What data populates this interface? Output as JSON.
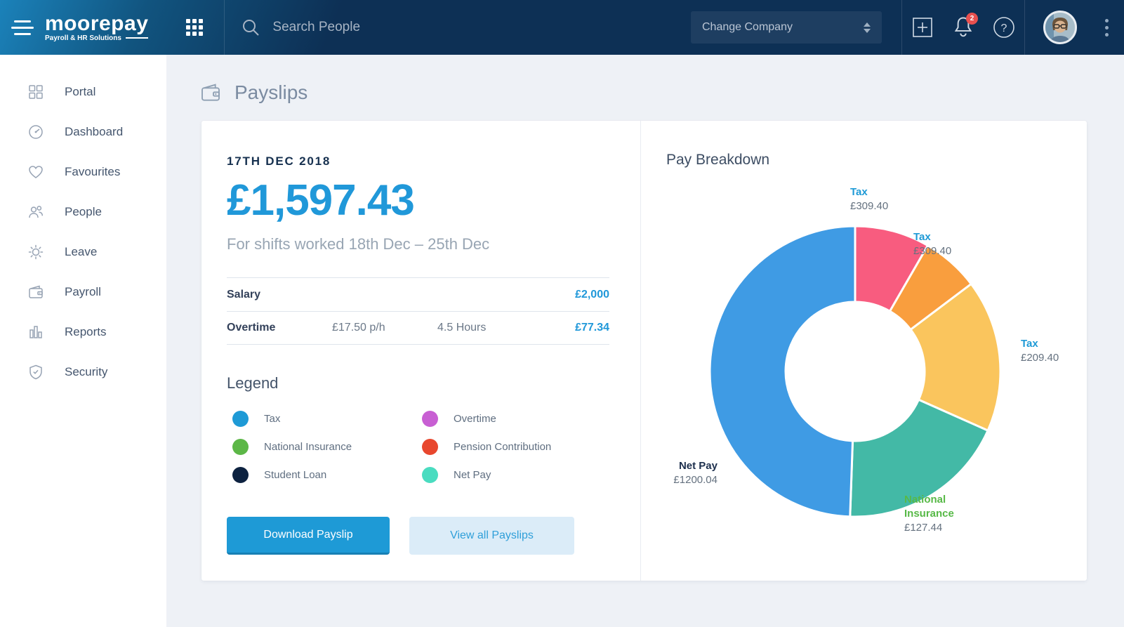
{
  "header": {
    "logo": {
      "name": "moorepay",
      "tagline": "Payroll & HR Solutions"
    },
    "search": {
      "placeholder": "Search People"
    },
    "company_dropdown": {
      "label": "Change Company"
    },
    "notifications": {
      "badge": "2"
    }
  },
  "sidebar": {
    "items": [
      {
        "label": "Portal",
        "icon": "portal-grid-icon"
      },
      {
        "label": "Dashboard",
        "icon": "gauge-icon"
      },
      {
        "label": "Favourites",
        "icon": "heart-icon"
      },
      {
        "label": "People",
        "icon": "people-icon"
      },
      {
        "label": "Leave",
        "icon": "sun-icon"
      },
      {
        "label": "Payroll",
        "icon": "wallet-icon"
      },
      {
        "label": "Reports",
        "icon": "bar-chart-icon"
      },
      {
        "label": "Security",
        "icon": "shield-icon"
      }
    ]
  },
  "page": {
    "title": "Payslips"
  },
  "payslip": {
    "date": "17TH DEC 2018",
    "amount": "£1,597.43",
    "subtitle": "For shifts worked 18th Dec – 25th Dec",
    "rows": [
      {
        "label": "Salary",
        "rate": "",
        "hours": "",
        "amount": "£2,000"
      },
      {
        "label": "Overtime",
        "rate": "£17.50 p/h",
        "hours": "4.5 Hours",
        "amount": "£77.34"
      }
    ],
    "legend": {
      "title": "Legend",
      "items": [
        {
          "label": "Tax",
          "color": "#1e9ad6"
        },
        {
          "label": "Overtime",
          "color": "#c85fd3"
        },
        {
          "label": "National Insurance",
          "color": "#5cb747"
        },
        {
          "label": "Pension Contribution",
          "color": "#e8472e"
        },
        {
          "label": "Student Loan",
          "color": "#0d2240"
        },
        {
          "label": "Net Pay",
          "color": "#4adcc0"
        }
      ]
    },
    "buttons": {
      "primary": "Download Payslip",
      "secondary": "View all Payslips"
    }
  },
  "chart_data": {
    "type": "pie",
    "subtype": "donut",
    "title": "Pay Breakdown",
    "inner_radius_ratio": 0.48,
    "legend_position": "labels-around-donut",
    "slices": [
      {
        "label": "Tax",
        "value": 309.4,
        "value_text": "£309.40",
        "color": "#f85c7f",
        "start_deg": 0,
        "end_deg": 30
      },
      {
        "label": "Tax",
        "value": 309.4,
        "value_text": "£309.40",
        "color": "#f99e3e",
        "start_deg": 30,
        "end_deg": 53
      },
      {
        "label": "Tax",
        "value": 209.4,
        "value_text": "£209.40",
        "color": "#fac55d",
        "start_deg": 53,
        "end_deg": 114
      },
      {
        "label": "National Insurance",
        "value": 127.44,
        "value_text": "£127.44",
        "color": "#43b9a6",
        "start_deg": 114,
        "end_deg": 182
      },
      {
        "label": "Net Pay",
        "value": 1200.04,
        "value_text": "£1200.04",
        "color": "#3f9be4",
        "start_deg": 182,
        "end_deg": 360
      }
    ]
  }
}
